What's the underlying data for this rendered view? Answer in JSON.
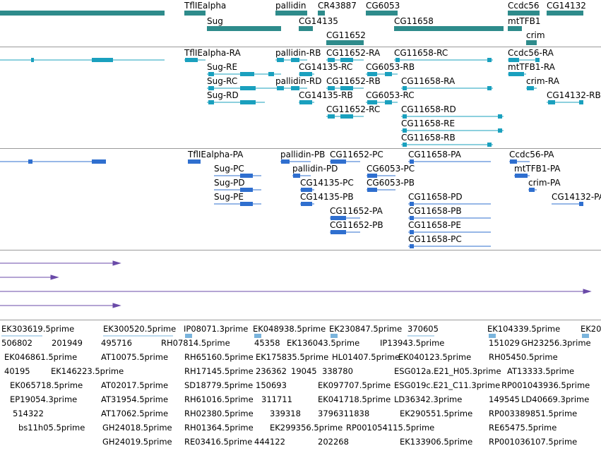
{
  "colors": {
    "gene": "#2e8b8b",
    "transcript": "#1aa0be",
    "protein": "#2f6fcf",
    "alignment": "#6a4aa8",
    "est": "#7ab4dc",
    "separator": "#9a9a9a"
  },
  "genes": [
    {
      "label": ""
    },
    {
      "label": "TflIEalpha"
    },
    {
      "label": "Sug"
    },
    {
      "label": "pallidin"
    },
    {
      "label": "CR43887"
    },
    {
      "label": "CG14135"
    },
    {
      "label": "CG11652"
    },
    {
      "label": "CG6053"
    },
    {
      "label": "CG11658"
    },
    {
      "label": "Ccdc56"
    },
    {
      "label": "mtTFB1"
    },
    {
      "label": "CG14132"
    },
    {
      "label": "crim"
    }
  ],
  "transcripts": [
    {
      "label": ""
    },
    {
      "label": "TflIEalpha-RA"
    },
    {
      "label": "Sug-RE"
    },
    {
      "label": "Sug-RC"
    },
    {
      "label": "Sug-RD"
    },
    {
      "label": "pallidin-RB"
    },
    {
      "label": "pallidin-RD"
    },
    {
      "label": "CG14135-RC"
    },
    {
      "label": "CG14135-RB"
    },
    {
      "label": "CG11652-RA"
    },
    {
      "label": "CG11652-RB"
    },
    {
      "label": "CG11652-RC"
    },
    {
      "label": "CG6053-RB"
    },
    {
      "label": "CG6053-RC"
    },
    {
      "label": "CG11658-RC"
    },
    {
      "label": "CG11658-RA"
    },
    {
      "label": "CG11658-RD"
    },
    {
      "label": "CG11658-RE"
    },
    {
      "label": "CG11658-RB"
    },
    {
      "label": "Ccdc56-RA"
    },
    {
      "label": "mtTFB1-RA"
    },
    {
      "label": "crim-RA"
    },
    {
      "label": "CG14132-RB"
    }
  ],
  "proteins": [
    {
      "label": ""
    },
    {
      "label": "TflIEalpha-PA"
    },
    {
      "label": "Sug-PC"
    },
    {
      "label": "Sug-PD"
    },
    {
      "label": "Sug-PE"
    },
    {
      "label": "pallidin-PB"
    },
    {
      "label": "pallidin-PD"
    },
    {
      "label": "CG14135-PC"
    },
    {
      "label": "CG14135-PB"
    },
    {
      "label": "CG11652-PC"
    },
    {
      "label": "CG11652-PA"
    },
    {
      "label": "CG11652-PB"
    },
    {
      "label": "CG6053-PC"
    },
    {
      "label": "CG6053-PB"
    },
    {
      "label": "CG11658-PA"
    },
    {
      "label": "CG11658-PD"
    },
    {
      "label": "CG11658-PB"
    },
    {
      "label": "CG11658-PE"
    },
    {
      "label": "CG11658-PC"
    },
    {
      "label": "Ccdc56-PA"
    },
    {
      "label": "mtTFB1-PA"
    },
    {
      "label": "crim-PA"
    },
    {
      "label": "CG14132-PA"
    }
  ],
  "alignments": [
    {
      "label": ""
    },
    {
      "label": ""
    },
    {
      "label": ""
    },
    {
      "label": ""
    }
  ],
  "ests": [
    {
      "label": "EK303619.5prime"
    },
    {
      "label": "EK300520.5prime"
    },
    {
      "label": "IP08071.3prime"
    },
    {
      "label": "EK048938.5prime"
    },
    {
      "label": "EK230847.5prime"
    },
    {
      "label": "370605"
    },
    {
      "label": "EK104339.5prime"
    },
    {
      "label": "EK20"
    },
    {
      "label": "506802"
    },
    {
      "label": "201949"
    },
    {
      "label": "495716"
    },
    {
      "label": "RH07814.5prime"
    },
    {
      "label": "45358"
    },
    {
      "label": "EK136043.5prime"
    },
    {
      "label": "IP13943.5prime"
    },
    {
      "label": "151029"
    },
    {
      "label": "GH23256.3prime"
    },
    {
      "label": "EK046861.5prime"
    },
    {
      "label": "AT10075.5prime"
    },
    {
      "label": "RH65160.5prime"
    },
    {
      "label": "EK175835.5prime"
    },
    {
      "label": "HL01407.5prime"
    },
    {
      "label": "EK040123.5prime"
    },
    {
      "label": "RH05450.5prime"
    },
    {
      "label": "40195"
    },
    {
      "label": "EK146223.5prime"
    },
    {
      "label": "RH17145.5prime"
    },
    {
      "label": "236362"
    },
    {
      "label": "19045"
    },
    {
      "label": "338780"
    },
    {
      "label": "ESG012a.E21_H05.3prime"
    },
    {
      "label": "AT13333.5prime"
    },
    {
      "label": "EK065718.5prime"
    },
    {
      "label": "AT02017.5prime"
    },
    {
      "label": "SD18779.5prime"
    },
    {
      "label": "150693"
    },
    {
      "label": "EK097707.5prime"
    },
    {
      "label": "ESG019c.E21_C11.3prime"
    },
    {
      "label": "RP001043936.5prime"
    },
    {
      "label": "EP19054.3prime"
    },
    {
      "label": "AT31954.5prime"
    },
    {
      "label": "RH61016.5prime"
    },
    {
      "label": "311711"
    },
    {
      "label": "EK041718.5prime"
    },
    {
      "label": "LD36342.3prime"
    },
    {
      "label": "149545"
    },
    {
      "label": "LD40669.3prime"
    },
    {
      "label": "514322"
    },
    {
      "label": "AT17062.5prime"
    },
    {
      "label": "RH02380.5prime"
    },
    {
      "label": "339318"
    },
    {
      "label": "3796311838"
    },
    {
      "label": "EK290551.5prime"
    },
    {
      "label": "RP003389851.5prime"
    },
    {
      "label": "bs11h05.5prime"
    },
    {
      "label": "GH24018.5prime"
    },
    {
      "label": "RH01364.5prime"
    },
    {
      "label": "EK299356.5prime"
    },
    {
      "label": "RP001054115.5prime"
    },
    {
      "label": "RE65475.5prime"
    },
    {
      "label": "GH24019.5prime"
    },
    {
      "label": "RE03416.5prime"
    },
    {
      "label": "444122"
    },
    {
      "label": "202268"
    },
    {
      "label": "EK133906.5prime"
    },
    {
      "label": "RP001036107.5prime"
    }
  ]
}
